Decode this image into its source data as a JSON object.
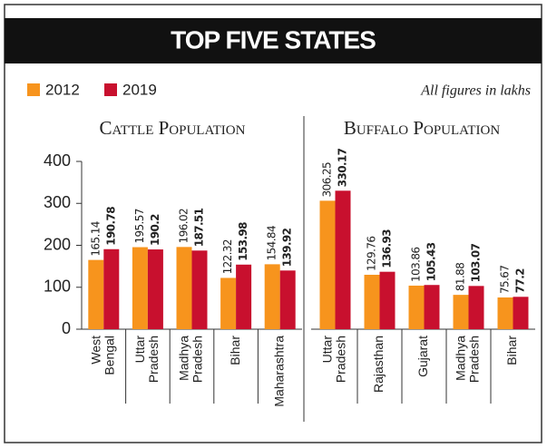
{
  "title": "TOP FIVE STATES",
  "note": "All figures in lakhs",
  "chart_data": [
    {
      "type": "bar",
      "title": "Cattle Population",
      "categories": [
        [
          "West",
          "Bengal"
        ],
        [
          "Uttar",
          "Pradesh"
        ],
        [
          "Madhya",
          "Pradesh"
        ],
        [
          "Bihar"
        ],
        [
          "Maharashtra"
        ]
      ],
      "series": [
        {
          "name": "2012",
          "color": "#f7941d",
          "values": [
            165.14,
            195.57,
            196.02,
            122.32,
            154.84
          ]
        },
        {
          "name": "2019",
          "color": "#c8102e",
          "values": [
            190.78,
            190.2,
            187.51,
            153.98,
            139.92
          ]
        }
      ],
      "ylim": [
        0,
        400
      ],
      "yticks": [
        0,
        100,
        200,
        300,
        400
      ]
    },
    {
      "type": "bar",
      "title": "Buffalo Population",
      "categories": [
        [
          "Uttar",
          "Pradesh"
        ],
        [
          "Rajasthan"
        ],
        [
          "Gujarat"
        ],
        [
          "Madhya",
          "Pradesh"
        ],
        [
          "Bihar"
        ]
      ],
      "series": [
        {
          "name": "2012",
          "color": "#f7941d",
          "values": [
            306.25,
            129.76,
            103.86,
            81.88,
            75.67
          ]
        },
        {
          "name": "2019",
          "color": "#c8102e",
          "values": [
            330.17,
            136.93,
            105.43,
            103.07,
            77.2
          ]
        }
      ],
      "ylim": [
        0,
        400
      ]
    }
  ]
}
